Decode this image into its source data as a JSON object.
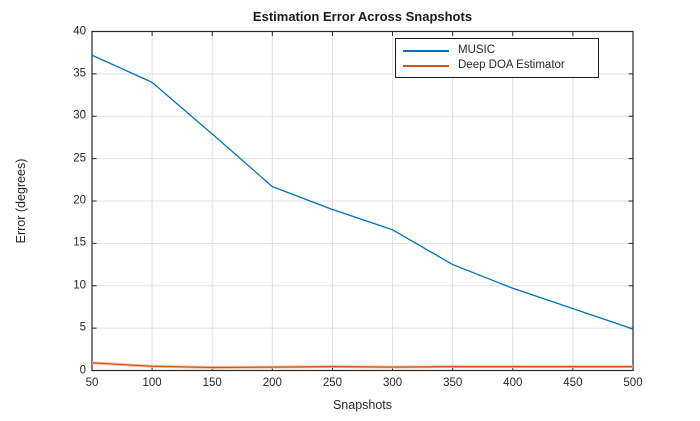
{
  "chart_data": {
    "type": "line",
    "title": "Estimation Error Across Snapshots",
    "xlabel": "Snapshots",
    "ylabel": "Error (degrees)",
    "x": [
      50,
      100,
      150,
      200,
      250,
      300,
      350,
      400,
      450,
      500
    ],
    "series": [
      {
        "name": "MUSIC",
        "color": "#0072BD",
        "values": [
          37.2,
          34.0,
          27.9,
          21.7,
          19.0,
          16.6,
          12.5,
          9.7,
          7.3,
          4.9
        ]
      },
      {
        "name": "Deep DOA Estimator",
        "color": "#D95319",
        "halo": "#F4C5A3",
        "values": [
          0.9,
          0.5,
          0.35,
          0.4,
          0.45,
          0.4,
          0.45,
          0.45,
          0.45,
          0.45
        ]
      }
    ],
    "xlim": [
      50,
      500
    ],
    "ylim": [
      0,
      40
    ],
    "xticks": [
      50,
      100,
      150,
      200,
      250,
      300,
      350,
      400,
      450,
      500
    ],
    "yticks": [
      0,
      5,
      10,
      15,
      20,
      25,
      30,
      35,
      40
    ],
    "grid": true,
    "legend_position": "upper-right-inside"
  },
  "colors": {
    "axis": "#262626",
    "grid": "#e0e0e0",
    "background": "#ffffff",
    "tick_label": "#262626",
    "legend_border": "#1a1a1a"
  }
}
